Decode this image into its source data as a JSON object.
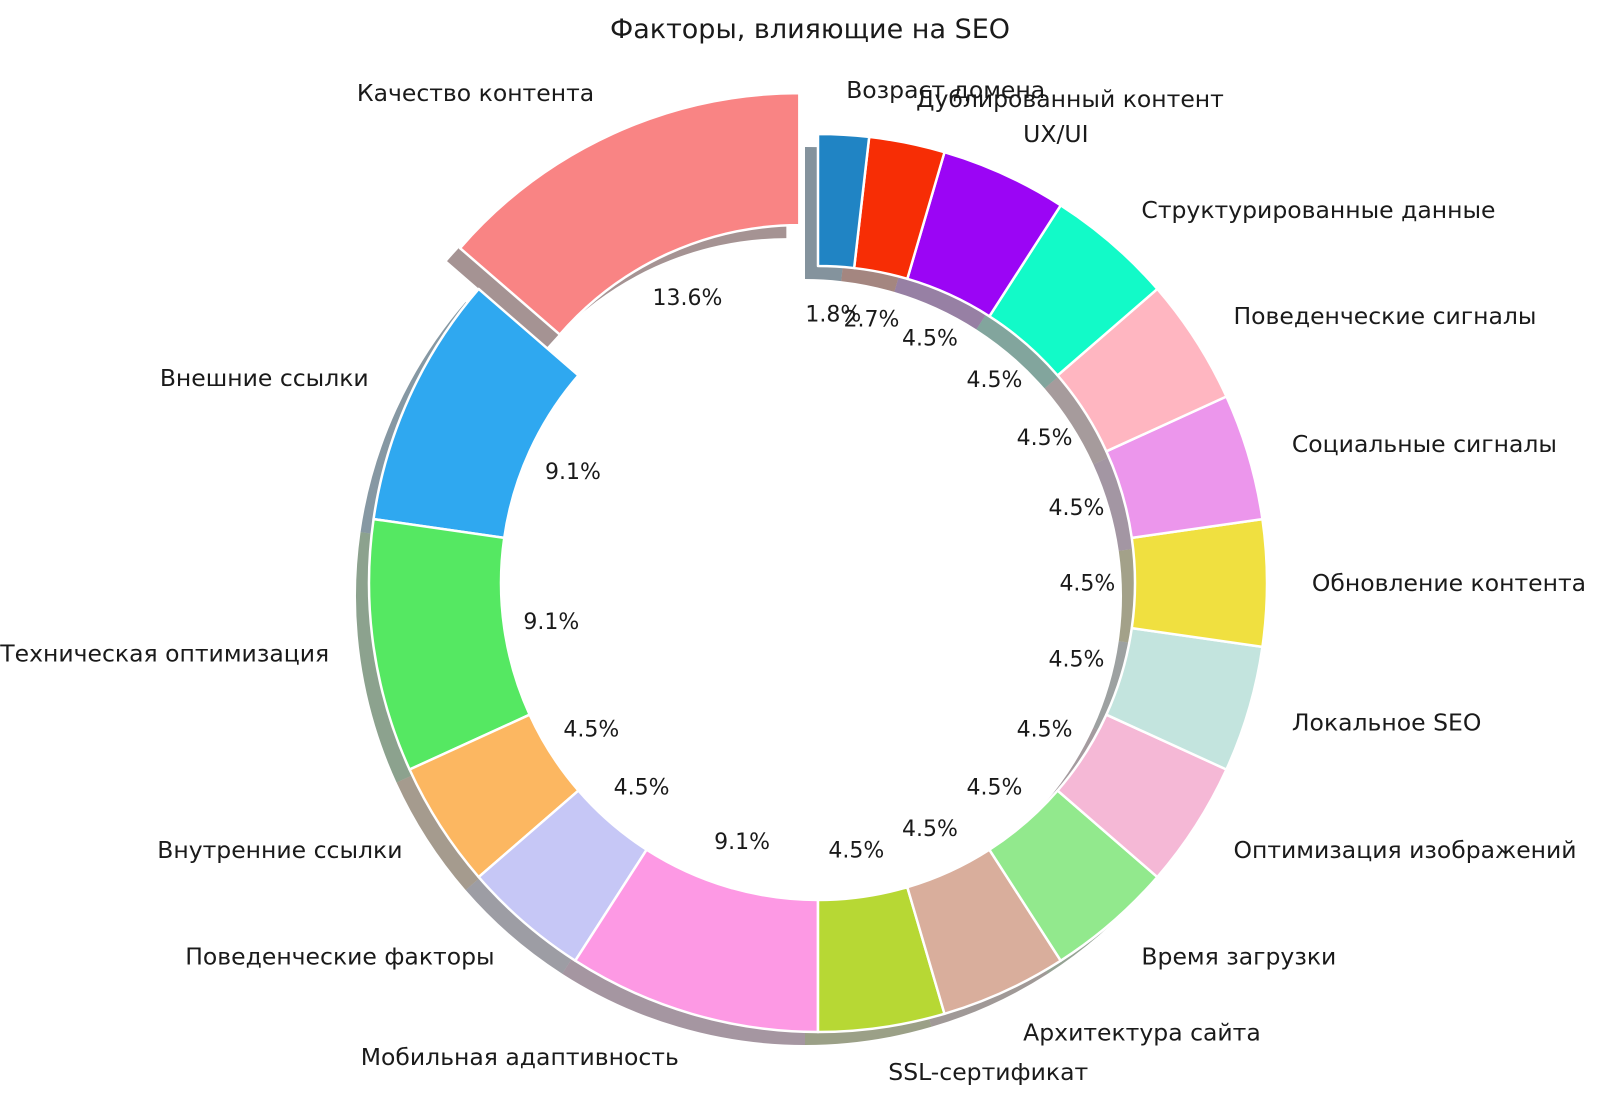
{
  "title": "Факторы, влияющие на SEO",
  "chart_data": {
    "type": "pie",
    "title": "Факторы, влияющие на SEO",
    "startangle": 90,
    "counterclock": true,
    "shadow": true,
    "donut": true,
    "pctdistance": 0.6,
    "labeldistance": 1.1,
    "label_color": "#1a1a1a",
    "background": "#ffffff",
    "edge_color": "#ffffff",
    "slices": [
      {
        "label": "Качество контента",
        "value": 15,
        "pct": "13.6%",
        "color": "#f98484",
        "explode": 0.1
      },
      {
        "label": "Внешние ссылки",
        "value": 10,
        "pct": "9.1%",
        "color": "#2fa8f0",
        "explode": 0
      },
      {
        "label": "Техническая оптимизация",
        "value": 10,
        "pct": "9.1%",
        "color": "#55e862",
        "explode": 0
      },
      {
        "label": "Внутренние ссылки",
        "value": 5,
        "pct": "4.5%",
        "color": "#fcb761",
        "explode": 0
      },
      {
        "label": "Поведенческие факторы",
        "value": 5,
        "pct": "4.5%",
        "color": "#c6c7f6",
        "explode": 0
      },
      {
        "label": "Мобильная адаптивность",
        "value": 10,
        "pct": "9.1%",
        "color": "#fd99e4",
        "explode": 0
      },
      {
        "label": "SSL-сертификат",
        "value": 5,
        "pct": "4.5%",
        "color": "#b7d834",
        "explode": 0
      },
      {
        "label": "Архитектура сайта",
        "value": 5,
        "pct": "4.5%",
        "color": "#d9ae9c",
        "explode": 0
      },
      {
        "label": "Время загрузки",
        "value": 5,
        "pct": "4.5%",
        "color": "#92e98d",
        "explode": 0
      },
      {
        "label": "Оптимизация изображений",
        "value": 5,
        "pct": "4.5%",
        "color": "#f5b8d6",
        "explode": 0
      },
      {
        "label": "Локальное SEO",
        "value": 5,
        "pct": "4.5%",
        "color": "#c3e4de",
        "explode": 0
      },
      {
        "label": "Обновление контента",
        "value": 5,
        "pct": "4.5%",
        "color": "#f0e040",
        "explode": 0
      },
      {
        "label": "Социальные сигналы",
        "value": 5,
        "pct": "4.5%",
        "color": "#ec96ec",
        "explode": 0
      },
      {
        "label": "Поведенческие сигналы",
        "value": 5,
        "pct": "4.5%",
        "color": "#ffb6c1",
        "explode": 0
      },
      {
        "label": "Структурированные данные",
        "value": 5,
        "pct": "4.5%",
        "color": "#12fac8",
        "explode": 0
      },
      {
        "label": "UX/UI",
        "value": 5,
        "pct": "4.5%",
        "color": "#9b05f5",
        "explode": 0
      },
      {
        "label": "Дублированный контент",
        "value": 3,
        "pct": "2.7%",
        "color": "#f72d05",
        "explode": 0
      },
      {
        "label": "Возраст домена",
        "value": 2,
        "pct": "1.8%",
        "color": "#2084c4",
        "explode": 0
      }
    ]
  }
}
